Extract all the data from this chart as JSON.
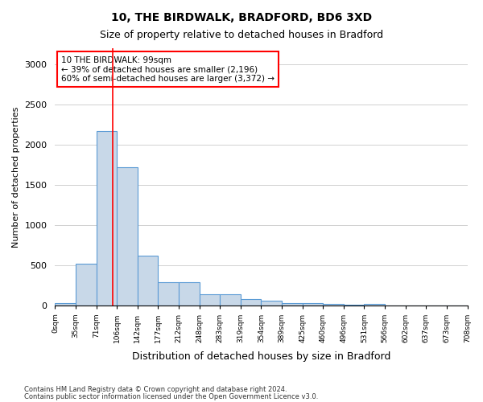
{
  "title1": "10, THE BIRDWALK, BRADFORD, BD6 3XD",
  "title2": "Size of property relative to detached houses in Bradford",
  "xlabel": "Distribution of detached houses by size in Bradford",
  "ylabel": "Number of detached properties",
  "bin_labels": [
    "0sqm",
    "35sqm",
    "71sqm",
    "106sqm",
    "142sqm",
    "177sqm",
    "212sqm",
    "248sqm",
    "283sqm",
    "319sqm",
    "354sqm",
    "389sqm",
    "425sqm",
    "460sqm",
    "496sqm",
    "531sqm",
    "566sqm",
    "602sqm",
    "637sqm",
    "673sqm",
    "708sqm"
  ],
  "bar_values": [
    30,
    525,
    2175,
    1725,
    625,
    295,
    295,
    140,
    140,
    80,
    60,
    30,
    30,
    20,
    10,
    25,
    5,
    5,
    5,
    5
  ],
  "bar_color": "#c8d8e8",
  "bar_edge_color": "#5b9bd5",
  "annotation_text": "10 THE BIRDWALK: 99sqm\n← 39% of detached houses are smaller (2,196)\n60% of semi-detached houses are larger (3,372) →",
  "ylim": [
    0,
    3200
  ],
  "yticks": [
    0,
    500,
    1000,
    1500,
    2000,
    2500,
    3000
  ],
  "footer1": "Contains HM Land Registry data © Crown copyright and database right 2024.",
  "footer2": "Contains public sector information licensed under the Open Government Licence v3.0."
}
